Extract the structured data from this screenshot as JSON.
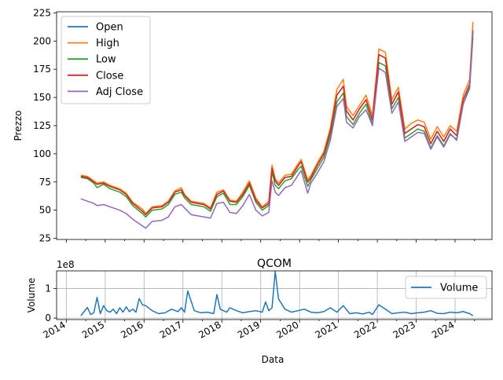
{
  "chart_data": [
    {
      "type": "line",
      "ylabel": "Prezzo",
      "ylim": [
        24,
        226
      ],
      "yticks": [
        25,
        50,
        75,
        100,
        125,
        150,
        175,
        200,
        225
      ],
      "legend": {
        "placement": "top-left",
        "entries": [
          "Open",
          "High",
          "Low",
          "Close",
          "Adj Close"
        ]
      },
      "grid": false,
      "x_dates": [
        "2014-05",
        "2014-07",
        "2014-09",
        "2014-10",
        "2014-12",
        "2015-02",
        "2015-05",
        "2015-07",
        "2015-09",
        "2015-12",
        "2016-01",
        "2016-03",
        "2016-06",
        "2016-08",
        "2016-10",
        "2016-12",
        "2017-01",
        "2017-03",
        "2017-05",
        "2017-07",
        "2017-09",
        "2017-11",
        "2018-01",
        "2018-03",
        "2018-05",
        "2018-07",
        "2018-09",
        "2018-11",
        "2019-01",
        "2019-03",
        "2019-04",
        "2019-05",
        "2019-06",
        "2019-08",
        "2019-10",
        "2019-12",
        "2020-01",
        "2020-03",
        "2020-04",
        "2020-06",
        "2020-08",
        "2020-10",
        "2020-12",
        "2021-02",
        "2021-03",
        "2021-05",
        "2021-07",
        "2021-09",
        "2021-11",
        "2022-01",
        "2022-03",
        "2022-05",
        "2022-07",
        "2022-09",
        "2022-11",
        "2023-01",
        "2023-03",
        "2023-05",
        "2023-07",
        "2023-09",
        "2023-11",
        "2024-01",
        "2024-03",
        "2024-05",
        "2024-06"
      ],
      "series": [
        {
          "name": "Open",
          "color": "#1f77b4",
          "values": [
            80,
            79,
            75,
            73,
            74,
            71,
            68,
            64,
            56,
            49,
            46,
            52,
            53,
            57,
            66,
            68,
            63,
            57,
            56,
            55,
            51,
            64,
            67,
            58,
            57,
            64,
            74,
            59,
            52,
            56,
            87,
            76,
            72,
            79,
            80,
            89,
            93,
            75,
            79,
            90,
            100,
            120,
            152,
            160,
            138,
            130,
            140,
            148,
            130,
            188,
            185,
            144,
            155,
            118,
            122,
            126,
            124,
            109,
            120,
            111,
            122,
            116,
            148,
            162,
            208
          ]
        },
        {
          "name": "High",
          "color": "#ff7f0e",
          "values": [
            81,
            80,
            76,
            74,
            75,
            72,
            69,
            65,
            57,
            51,
            47,
            53,
            54,
            58,
            67,
            70,
            64,
            58,
            57,
            56,
            52,
            66,
            68,
            59,
            58,
            66,
            76,
            61,
            53,
            58,
            90,
            78,
            74,
            81,
            82,
            91,
            95,
            77,
            81,
            92,
            102,
            123,
            157,
            166,
            142,
            134,
            143,
            152,
            134,
            193,
            190,
            148,
            159,
            122,
            127,
            130,
            128,
            113,
            124,
            115,
            125,
            120,
            152,
            166,
            217
          ]
        },
        {
          "name": "Low",
          "color": "#2ca02c",
          "values": [
            79,
            78,
            74,
            70,
            73,
            69,
            66,
            62,
            54,
            47,
            44,
            50,
            51,
            55,
            64,
            66,
            61,
            55,
            54,
            53,
            49,
            62,
            65,
            55,
            55,
            62,
            72,
            57,
            50,
            54,
            84,
            72,
            69,
            76,
            78,
            86,
            89,
            71,
            77,
            87,
            97,
            116,
            146,
            154,
            133,
            126,
            136,
            144,
            126,
            181,
            178,
            140,
            150,
            114,
            118,
            122,
            120,
            105,
            116,
            107,
            118,
            112,
            144,
            158,
            204
          ]
        },
        {
          "name": "Close",
          "color": "#d62728",
          "values": [
            80,
            79,
            75,
            73,
            74,
            71,
            68,
            64,
            56,
            49,
            46,
            52,
            53,
            57,
            66,
            68,
            63,
            57,
            56,
            55,
            51,
            64,
            67,
            58,
            57,
            64,
            74,
            59,
            52,
            56,
            87,
            76,
            72,
            79,
            80,
            89,
            93,
            75,
            79,
            90,
            100,
            120,
            152,
            160,
            138,
            130,
            140,
            148,
            130,
            188,
            185,
            144,
            155,
            118,
            122,
            126,
            124,
            109,
            120,
            111,
            122,
            116,
            148,
            162,
            210
          ]
        },
        {
          "name": "Adj Close",
          "color": "#9467bd",
          "values": [
            60,
            58,
            56,
            54,
            55,
            53,
            50,
            47,
            42,
            36,
            34,
            40,
            41,
            44,
            53,
            55,
            52,
            46,
            45,
            44,
            43,
            56,
            57,
            48,
            47,
            54,
            64,
            50,
            45,
            48,
            76,
            66,
            63,
            70,
            72,
            81,
            85,
            65,
            74,
            83,
            93,
            112,
            142,
            149,
            128,
            123,
            133,
            139,
            125,
            176,
            172,
            136,
            146,
            111,
            115,
            119,
            118,
            104,
            115,
            106,
            117,
            113,
            144,
            160,
            210
          ]
        }
      ]
    },
    {
      "type": "line",
      "title": "QCOM",
      "xlabel": "Data",
      "ylabel": "Volume",
      "y_multiplier": "1e8",
      "ylim": [
        -0.05,
        1.6
      ],
      "yticks": [
        0,
        1
      ],
      "x_ticks": [
        "2014",
        "2015",
        "2016",
        "2017",
        "2018",
        "2019",
        "2020",
        "2021",
        "2022",
        "2023",
        "2024"
      ],
      "grid": true,
      "legend": {
        "placement": "right",
        "entries": [
          "Volume"
        ]
      },
      "series": [
        {
          "name": "Volume",
          "color": "#1f77b4",
          "x_dates": [
            "2014-05",
            "2014-07",
            "2014-08",
            "2014-09",
            "2014-10",
            "2014-11",
            "2014-12",
            "2015-01",
            "2015-02",
            "2015-03",
            "2015-04",
            "2015-05",
            "2015-06",
            "2015-07",
            "2015-08",
            "2015-09",
            "2015-10",
            "2015-11",
            "2015-12",
            "2016-01",
            "2016-03",
            "2016-05",
            "2016-07",
            "2016-09",
            "2016-11",
            "2016-12",
            "2017-01",
            "2017-02",
            "2017-04",
            "2017-06",
            "2017-08",
            "2017-10",
            "2017-11",
            "2017-12",
            "2018-02",
            "2018-03",
            "2018-05",
            "2018-07",
            "2018-09",
            "2018-11",
            "2019-01",
            "2019-02",
            "2019-03",
            "2019-04",
            "2019-05",
            "2019-06",
            "2019-08",
            "2019-10",
            "2019-12",
            "2020-02",
            "2020-04",
            "2020-06",
            "2020-08",
            "2020-10",
            "2020-12",
            "2021-02",
            "2021-04",
            "2021-06",
            "2021-08",
            "2021-10",
            "2021-11",
            "2022-01",
            "2022-03",
            "2022-05",
            "2022-07",
            "2022-09",
            "2022-11",
            "2023-01",
            "2023-03",
            "2023-05",
            "2023-07",
            "2023-09",
            "2023-11",
            "2024-01",
            "2024-03",
            "2024-05",
            "2024-06"
          ],
          "values": [
            0.08,
            0.36,
            0.12,
            0.18,
            0.7,
            0.15,
            0.42,
            0.25,
            0.2,
            0.3,
            0.15,
            0.35,
            0.2,
            0.38,
            0.22,
            0.3,
            0.2,
            0.66,
            0.45,
            0.42,
            0.25,
            0.15,
            0.18,
            0.3,
            0.22,
            0.35,
            0.2,
            0.92,
            0.25,
            0.18,
            0.2,
            0.15,
            0.8,
            0.3,
            0.2,
            0.35,
            0.25,
            0.18,
            0.22,
            0.25,
            0.2,
            0.55,
            0.25,
            0.35,
            1.58,
            0.65,
            0.3,
            0.2,
            0.25,
            0.3,
            0.2,
            0.18,
            0.22,
            0.35,
            0.2,
            0.42,
            0.15,
            0.18,
            0.14,
            0.2,
            0.12,
            0.45,
            0.3,
            0.15,
            0.18,
            0.2,
            0.15,
            0.18,
            0.2,
            0.25,
            0.16,
            0.15,
            0.2,
            0.18,
            0.22,
            0.15,
            0.08
          ]
        }
      ]
    }
  ]
}
